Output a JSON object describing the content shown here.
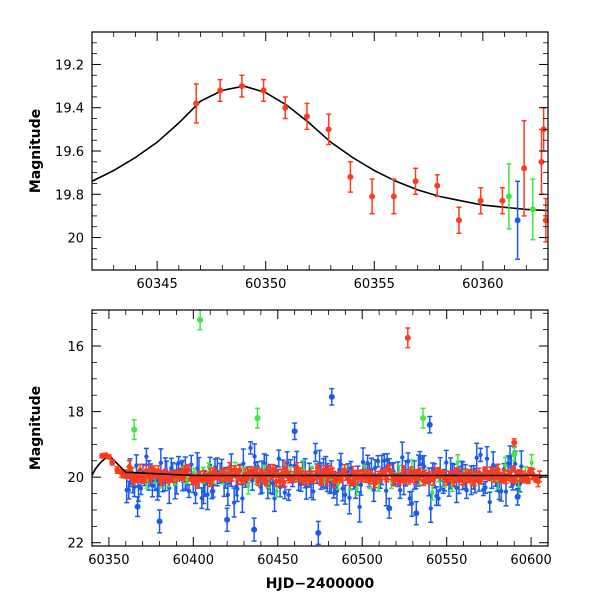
{
  "colors": {
    "red": "#ff3b1f",
    "green": "#3ee83e",
    "blue": "#1a5cf0",
    "model": "#000000"
  },
  "chart_data": [
    {
      "type": "scatter",
      "title": "",
      "xlabel": "",
      "ylabel": "Magnitude",
      "xlim": [
        60342,
        60363
      ],
      "ylim": [
        20.15,
        19.05
      ],
      "y_inverted": true,
      "grid": false,
      "x_ticks": [
        60345,
        60350,
        60355,
        60360
      ],
      "y_ticks": [
        19.2,
        19.4,
        19.6,
        19.8,
        20
      ],
      "x_tick_labels": [
        "60345",
        "60350",
        "60355",
        "60360"
      ],
      "y_tick_labels": [
        "19.2",
        "19.4",
        "19.6",
        "19.8",
        "20"
      ],
      "model_curve": {
        "x": [
          60342,
          60343,
          60344,
          60345,
          60346,
          60347,
          60348,
          60349,
          60350,
          60351,
          60352,
          60353,
          60354,
          60355,
          60356,
          60357,
          60358,
          60359,
          60360,
          60361,
          60362,
          60363
        ],
        "y": [
          19.74,
          19.69,
          19.63,
          19.56,
          19.47,
          19.37,
          19.32,
          19.3,
          19.33,
          19.39,
          19.47,
          19.56,
          19.63,
          19.69,
          19.74,
          19.78,
          19.81,
          19.83,
          19.85,
          19.86,
          19.87,
          19.875
        ]
      },
      "series": [
        {
          "color": "red",
          "points": [
            {
              "x": 60346.8,
              "y": 19.38,
              "err": 0.09
            },
            {
              "x": 60347.9,
              "y": 19.32,
              "err": 0.05
            },
            {
              "x": 60348.9,
              "y": 19.3,
              "err": 0.05
            },
            {
              "x": 60349.9,
              "y": 19.32,
              "err": 0.05
            },
            {
              "x": 60350.9,
              "y": 19.4,
              "err": 0.05
            },
            {
              "x": 60351.9,
              "y": 19.44,
              "err": 0.06
            },
            {
              "x": 60352.9,
              "y": 19.5,
              "err": 0.07
            },
            {
              "x": 60353.9,
              "y": 19.72,
              "err": 0.07
            },
            {
              "x": 60354.9,
              "y": 19.81,
              "err": 0.08
            },
            {
              "x": 60355.9,
              "y": 19.81,
              "err": 0.08
            },
            {
              "x": 60356.9,
              "y": 19.74,
              "err": 0.06
            },
            {
              "x": 60357.9,
              "y": 19.76,
              "err": 0.05
            },
            {
              "x": 60358.9,
              "y": 19.92,
              "err": 0.06
            },
            {
              "x": 60359.9,
              "y": 19.83,
              "err": 0.06
            },
            {
              "x": 60360.9,
              "y": 19.83,
              "err": 0.06
            },
            {
              "x": 60361.9,
              "y": 19.68,
              "err": 0.22
            },
            {
              "x": 60362.7,
              "y": 19.65,
              "err": 0.15
            },
            {
              "x": 60362.8,
              "y": 19.5,
              "err": 0.1
            },
            {
              "x": 60362.9,
              "y": 19.92,
              "err": 0.1
            }
          ]
        },
        {
          "color": "green",
          "points": [
            {
              "x": 60361.2,
              "y": 19.81,
              "err": 0.15
            },
            {
              "x": 60362.3,
              "y": 19.87,
              "err": 0.14
            }
          ]
        },
        {
          "color": "blue",
          "points": [
            {
              "x": 60361.6,
              "y": 19.92,
              "err": 0.18
            }
          ]
        }
      ]
    },
    {
      "type": "scatter",
      "title": "",
      "xlabel": "HJD−2400000",
      "ylabel": "Magnitude",
      "xlim": [
        60340,
        60610
      ],
      "ylim": [
        22.1,
        14.9
      ],
      "y_inverted": true,
      "grid": false,
      "x_ticks": [
        60350,
        60400,
        60450,
        60500,
        60550,
        60600
      ],
      "y_ticks": [
        16,
        18,
        20,
        22
      ],
      "x_tick_labels": [
        "60350",
        "60400",
        "60450",
        "60500",
        "60550",
        "60600"
      ],
      "y_tick_labels": [
        "16",
        "18",
        "20",
        "22"
      ],
      "model_curve": {
        "x": [
          60340,
          60342,
          60345,
          60350,
          60360,
          60400,
          60500,
          60610
        ],
        "y": [
          19.95,
          19.75,
          19.56,
          19.33,
          19.85,
          19.95,
          19.95,
          19.95
        ]
      },
      "band_summary": {
        "red_points_per_day": 1,
        "red_scatter_mag": 0.25,
        "blue_scatter_mag": 0.7,
        "green_scatter_mag": 0.35,
        "blue_x_range": [
          60360,
          60595
        ],
        "green_x_range": [
          60360,
          60600
        ],
        "note_outliers_listed_in_series": true
      },
      "series": [
        {
          "color": "red",
          "points": [
            {
              "x": 60346,
              "y": 19.35,
              "err": 0.06
            },
            {
              "x": 60348,
              "y": 19.33,
              "err": 0.06
            },
            {
              "x": 60350,
              "y": 19.38,
              "err": 0.06
            },
            {
              "x": 60352,
              "y": 19.55,
              "err": 0.08
            },
            {
              "x": 60355,
              "y": 19.78,
              "err": 0.1
            },
            {
              "x": 60527,
              "y": 15.75,
              "err": 0.3
            },
            {
              "x": 60590,
              "y": 18.95,
              "err": 0.12
            }
          ]
        },
        {
          "color": "green",
          "points": [
            {
              "x": 60365,
              "y": 18.55,
              "err": 0.3
            },
            {
              "x": 60404,
              "y": 15.2,
              "err": 0.3
            },
            {
              "x": 60438,
              "y": 18.2,
              "err": 0.3
            },
            {
              "x": 60536,
              "y": 18.2,
              "err": 0.3
            },
            {
              "x": 60590,
              "y": 19.3,
              "err": 0.2
            }
          ]
        },
        {
          "color": "blue",
          "points": [
            {
              "x": 60482,
              "y": 17.55,
              "err": 0.25
            },
            {
              "x": 60474,
              "y": 21.7,
              "err": 0.35
            },
            {
              "x": 60436,
              "y": 21.6,
              "err": 0.35
            },
            {
              "x": 60420,
              "y": 21.3,
              "err": 0.35
            },
            {
              "x": 60380,
              "y": 21.35,
              "err": 0.35
            },
            {
              "x": 60367,
              "y": 20.9,
              "err": 0.3
            },
            {
              "x": 60532,
              "y": 21.1,
              "err": 0.35
            },
            {
              "x": 60516,
              "y": 20.95,
              "err": 0.3
            },
            {
              "x": 60460,
              "y": 18.6,
              "err": 0.25
            },
            {
              "x": 60540,
              "y": 18.4,
              "err": 0.25
            },
            {
              "x": 60592,
              "y": 20.6,
              "err": 0.25
            }
          ]
        }
      ]
    }
  ]
}
